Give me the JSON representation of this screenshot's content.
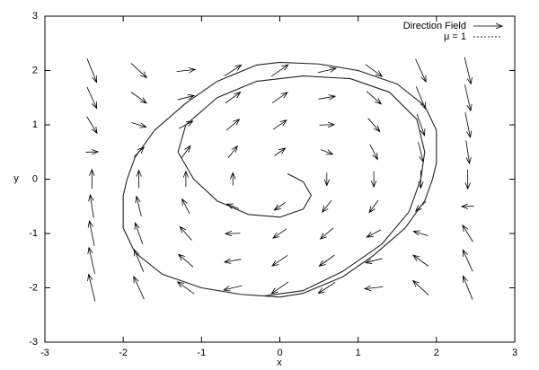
{
  "chart_data": {
    "type": "phase",
    "x_label": "x",
    "y_label": "y",
    "xlim": [
      -3,
      3
    ],
    "ylim": [
      -3,
      3
    ],
    "xticks": [
      -3,
      -2,
      -1,
      0,
      1,
      2,
      3
    ],
    "yticks": [
      -3,
      -2,
      -1,
      0,
      1,
      2,
      3
    ],
    "legend": "upper right",
    "field": {
      "name": "Direction Field",
      "color": "#000000",
      "x": [
        -2.4,
        -1.8,
        -1.2,
        -0.6,
        0,
        0.6,
        1.2,
        1.8,
        2.4
      ],
      "y": [
        -2,
        -1.5,
        -1,
        -0.5,
        0,
        0.5,
        1,
        1.5,
        2
      ],
      "u": [
        [
          -2,
          -2,
          -2,
          -2,
          -2,
          -2,
          -2,
          -2,
          -2
        ],
        [
          -1.5,
          -1.5,
          -1.5,
          -1.5,
          -1.5,
          -1.5,
          -1.5,
          -1.5,
          -1.5
        ],
        [
          -1,
          -1,
          -1,
          -1,
          -1,
          -1,
          -1,
          -1,
          -1
        ],
        [
          -0.5,
          -0.5,
          -0.5,
          -0.5,
          -0.5,
          -0.5,
          -0.5,
          -0.5,
          -0.5
        ],
        [
          0,
          0,
          0,
          0,
          0,
          0,
          0,
          0,
          0
        ],
        [
          0.5,
          0.5,
          0.5,
          0.5,
          0.5,
          0.5,
          0.5,
          0.5,
          0.5
        ],
        [
          1,
          1,
          1,
          1,
          1,
          1,
          1,
          1,
          1
        ],
        [
          1.5,
          1.5,
          1.5,
          1.5,
          1.5,
          1.5,
          1.5,
          1.5,
          1.5
        ],
        [
          2,
          2,
          2,
          2,
          2,
          2,
          2,
          2,
          2
        ]
      ],
      "v": [
        [
          11.92,
          6.28,
          2.08,
          -0.68,
          -2,
          -1.88,
          -0.32,
          2.68,
          7.12
        ],
        [
          9.54,
          5.16,
          1.86,
          -0.36,
          -1.5,
          -1.56,
          -0.54,
          1.56,
          4.74
        ],
        [
          7.16,
          4.04,
          1.64,
          -0.04,
          -1,
          -1.24,
          -0.76,
          0.44,
          2.36
        ],
        [
          4.78,
          2.92,
          1.42,
          0.28,
          -0.5,
          -0.92,
          -0.98,
          -0.68,
          -0.02
        ],
        [
          2.4,
          1.8,
          1.2,
          0.6,
          0,
          -0.6,
          -1.2,
          -1.8,
          -2.4
        ],
        [
          0.02,
          0.68,
          0.98,
          0.92,
          0.5,
          -0.28,
          -1.42,
          -2.92,
          -4.78
        ],
        [
          -2.36,
          -0.44,
          0.76,
          1.24,
          1,
          0.04,
          -1.64,
          -4.04,
          -7.16
        ],
        [
          -4.74,
          -1.56,
          0.54,
          1.56,
          1.5,
          0.36,
          -1.86,
          -5.16,
          -9.54
        ],
        [
          -7.12,
          -2.68,
          0.32,
          1.88,
          2,
          0.68,
          -2.08,
          -6.28,
          -11.92
        ]
      ]
    },
    "series": [
      {
        "name": "μ = 1",
        "color": "#222222",
        "dashed": true,
        "x": [
          0.1,
          0.3,
          0.4,
          0.3,
          0,
          -0.4,
          -0.8,
          -1.1,
          -1.3,
          -1.2,
          -0.8,
          -0.3,
          0.3,
          0.9,
          1.4,
          1.75,
          1.85,
          1.8,
          1.65,
          1.3,
          0.8,
          0.3,
          -0.2,
          -0.5,
          -1,
          -1.5,
          -1.85,
          -2.0,
          -2.0,
          -1.95,
          -1.85,
          -1.6,
          -1.2,
          -0.8,
          -0.3,
          0,
          0.5,
          1,
          1.5,
          1.85,
          2.0,
          2.0,
          1.95,
          1.85,
          1.6,
          1.2,
          0.8,
          0.3,
          0,
          -0.5,
          -1,
          -1.5,
          -1.85,
          -2.0,
          -2.0,
          -1.95,
          -1.85,
          -1.6,
          -1.2,
          -0.8,
          -0.3,
          0
        ],
        "y": [
          0.1,
          -0.05,
          -0.3,
          -0.55,
          -0.7,
          -0.65,
          -0.4,
          0,
          0.5,
          1.0,
          1.5,
          1.8,
          1.9,
          1.85,
          1.6,
          1.1,
          0.5,
          0,
          -0.6,
          -1.2,
          -1.7,
          -2.05,
          -2.15,
          -2.12,
          -2.0,
          -1.75,
          -1.35,
          -0.9,
          -0.3,
          0,
          0.4,
          0.9,
          1.4,
          1.8,
          2.1,
          2.15,
          2.12,
          2.0,
          1.75,
          1.35,
          0.9,
          0.3,
          0,
          -0.4,
          -0.9,
          -1.4,
          -1.8,
          -2.1,
          -2.17,
          -2.12,
          -2.0,
          -1.75,
          -1.35,
          -0.9,
          -0.3,
          0,
          0.4,
          0.9,
          1.4,
          1.8,
          2.1,
          2.15
        ]
      }
    ]
  }
}
